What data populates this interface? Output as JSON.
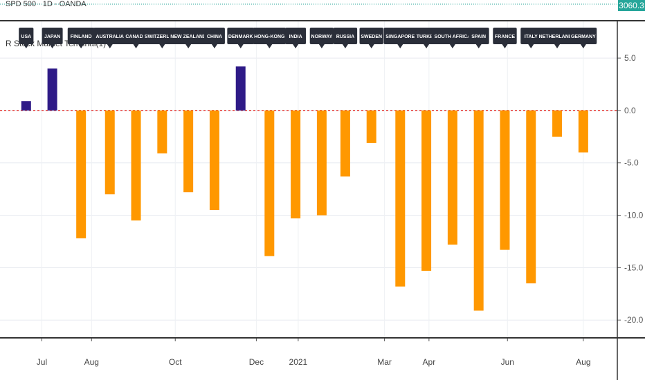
{
  "header": {
    "mini_label": "SPD 500 · 1D · OANDA",
    "price_badge": "3060.3",
    "indicator_label": "R Stock Market Terminal(1)"
  },
  "colors": {
    "positive": "#2e1a87",
    "negative": "#ff9800",
    "zero_line": "#e53935",
    "label_bg": "#2a2e39",
    "badge": "#26a69a"
  },
  "chart_data": {
    "type": "bar",
    "title": "",
    "xlabel": "",
    "ylabel": "",
    "ylim": [
      -21.7,
      8.5
    ],
    "yticks": [
      5.0,
      0.0,
      -5.0,
      -10.0,
      -15.0,
      -20.0
    ],
    "ytick_labels": [
      "5.0",
      "0.0",
      "-5.0",
      "-10.0",
      "-15.0",
      "-20.0"
    ],
    "grid": true,
    "zero_line": true,
    "categories": [
      "USA",
      "JAPAN",
      "FINLAND",
      "AUSTRALIA",
      "CANADA",
      "SWITZERLAND",
      "NEW ZEALAND",
      "CHINA",
      "DENMARK",
      "HONG-KONG",
      "INDIA",
      "NORWAY",
      "RUSSIA",
      "SWEDEN",
      "SINGAPORE",
      "TURKEY",
      "SOUTH AFRICA",
      "SPAIN",
      "FRANCE",
      "ITALY",
      "NETHERLANDS",
      "GERMANY"
    ],
    "values": [
      0.9,
      4.0,
      -12.2,
      -8.0,
      -10.5,
      -4.1,
      -7.8,
      -9.5,
      4.2,
      -13.9,
      -10.3,
      -10.0,
      -6.3,
      -3.1,
      -16.8,
      -15.3,
      -12.8,
      -19.1,
      -13.3,
      -16.5,
      -2.5,
      -4.0
    ],
    "x_index": [
      0.1,
      1.1,
      2.2,
      3.3,
      4.3,
      5.3,
      6.3,
      7.3,
      8.3,
      9.4,
      10.4,
      11.4,
      12.3,
      13.3,
      14.4,
      15.4,
      16.4,
      17.4,
      18.4,
      19.4,
      20.4,
      21.4
    ],
    "x_range": [
      -0.9,
      22.7
    ],
    "xtick_labels": [
      "Jul",
      "Aug",
      "Oct",
      "Dec",
      "2021",
      "Mar",
      "Apr",
      "Jun",
      "Aug"
    ],
    "xtick_index": [
      0.7,
      2.6,
      5.8,
      8.9,
      10.5,
      13.8,
      15.5,
      18.5,
      21.4
    ]
  }
}
